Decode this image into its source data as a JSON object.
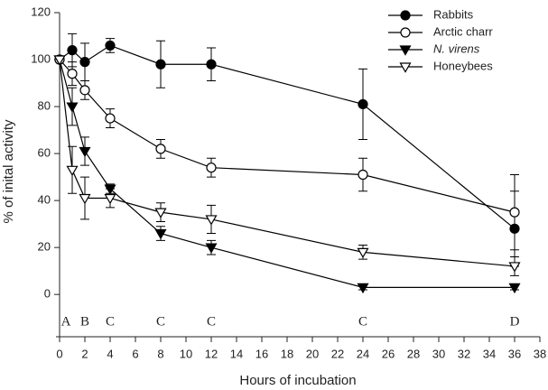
{
  "chart_data": {
    "type": "line",
    "x_label": "Hours of incubation",
    "y_label": "% of inital activity",
    "x": [
      0,
      1,
      2,
      4,
      8,
      12,
      24,
      36
    ],
    "series": [
      {
        "name": "Rabbits",
        "color": "#000000",
        "marker": "circle",
        "filled": true,
        "values": [
          100,
          104,
          99,
          106,
          98,
          98,
          81,
          28
        ],
        "error": [
          0,
          7,
          8,
          3,
          10,
          7,
          15,
          16
        ]
      },
      {
        "name": "Arctic charr",
        "color": "#000000",
        "marker": "circle",
        "filled": false,
        "values": [
          100,
          94,
          87,
          75,
          62,
          54,
          51,
          35
        ],
        "error": [
          0,
          5,
          4,
          4,
          4,
          4,
          7,
          16
        ]
      },
      {
        "name": "N. virens",
        "color": "#000000",
        "marker": "triangle-down",
        "filled": true,
        "italic": true,
        "values": [
          100,
          80,
          61,
          45,
          26,
          20,
          3,
          3
        ],
        "error": [
          0,
          8,
          6,
          2,
          3,
          3,
          1,
          1
        ]
      },
      {
        "name": "Honeybees",
        "color": "#000000",
        "marker": "triangle-down",
        "filled": false,
        "values": [
          100,
          53,
          41,
          41,
          35,
          32,
          18,
          12
        ],
        "error": [
          0,
          10,
          9,
          4,
          4,
          6,
          3,
          4
        ]
      }
    ],
    "annotations": [
      {
        "x": 0.5,
        "text": "A"
      },
      {
        "x": 2,
        "text": "B"
      },
      {
        "x": 4,
        "text": "C"
      },
      {
        "x": 8,
        "text": "C"
      },
      {
        "x": 12,
        "text": "C"
      },
      {
        "x": 24,
        "text": "C"
      },
      {
        "x": 36,
        "text": "D"
      }
    ],
    "xlim": [
      0,
      38
    ],
    "xticks": [
      0,
      2,
      4,
      6,
      8,
      10,
      12,
      14,
      16,
      18,
      20,
      22,
      24,
      26,
      28,
      30,
      32,
      34,
      36,
      38
    ],
    "ylim": [
      -18,
      120
    ],
    "yticks": [
      0,
      20,
      40,
      60,
      80,
      100,
      120
    ],
    "grid": false,
    "legend": "top-right"
  }
}
